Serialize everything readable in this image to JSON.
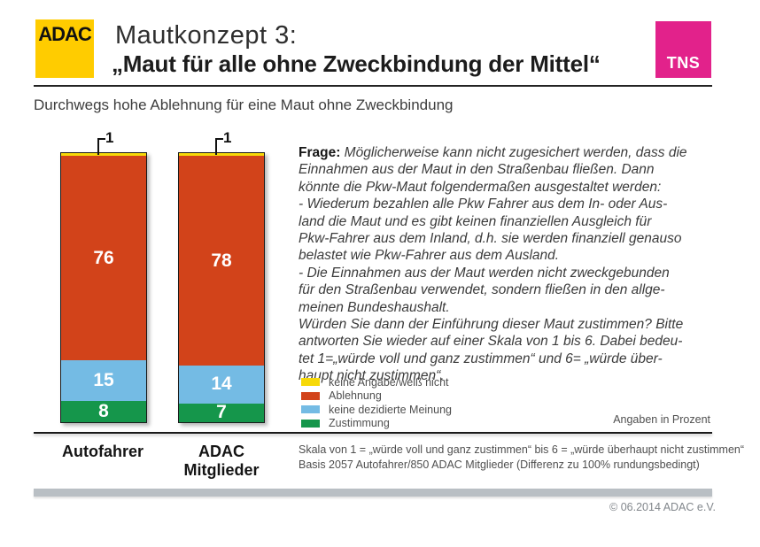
{
  "header": {
    "adac_logo_text": "ADAC",
    "title_line1": "Mautkonzept 3:",
    "title_line2": "„Maut für alle ohne Zweckbindung der Mittel“",
    "tns_logo_text": "TNS"
  },
  "subtitle": "Durchwegs hohe Ablehnung für eine Maut ohne Zweckbindung",
  "chart_data": {
    "type": "bar",
    "stacked": true,
    "unit": "percent",
    "categories": [
      "Autofahrer",
      "ADAC Mitglieder"
    ],
    "series": [
      {
        "name": "keine Angabe/weiß nicht",
        "color": "#f7d908",
        "values": [
          1,
          1
        ]
      },
      {
        "name": "Ablehnung",
        "color": "#d2431a",
        "values": [
          76,
          78
        ]
      },
      {
        "name": "keine dezidierte Meinung",
        "color": "#74bbe4",
        "values": [
          15,
          14
        ]
      },
      {
        "name": "Zustimmung",
        "color": "#15964b",
        "values": [
          8,
          7
        ]
      }
    ],
    "ylim": [
      0,
      100
    ],
    "grid": false,
    "legend_position": "right-middle",
    "bar_value_color": "#ffffff",
    "note": "Angaben in Prozent"
  },
  "question": {
    "label": "Frage:",
    "text": "Möglicherweise kann nicht zugesichert werden, dass die\nEinnahmen aus der Maut in den Straßenbau fließen. Dann\nkönnte die Pkw-Maut folgendermaßen ausgestaltet werden:\n- Wiederum bezahlen alle Pkw Fahrer aus dem In- oder Aus-\nland die Maut und es gibt keinen finanziellen Ausgleich für\nPkw-Fahrer aus dem Inland, d.h. sie werden finanziell genauso\nbelastet wie Pkw-Fahrer aus dem Ausland.\n- Die Einnahmen aus der Maut werden nicht zweckgebunden\nfür den Straßenbau verwendet, sondern fließen in den allge-\nmeinen Bundeshaushalt.\nWürden Sie dann der Einführung dieser Maut zustimmen? Bitte\nantworten Sie wieder auf einer Skala von 1 bis 6. Dabei bedeu-\ntet 1=„würde voll und ganz zustimmen“ und 6= „würde über-\nhaupt nicht zustimmen“."
  },
  "footnote": {
    "line1": "Skala von 1 = „würde voll und ganz zustimmen“ bis 6 = „würde überhaupt nicht zustimmen“",
    "line2": "Basis 2057 Autofahrer/850 ADAC Mitglieder (Differenz zu 100% rundungsbedingt)"
  },
  "footer": {
    "copyright": "© 06.2014  ADAC e.V."
  },
  "colors": {
    "adac_yellow": "#ffcc00",
    "tns_magenta": "#e2228b",
    "rule_dark": "#1a1a1a",
    "bottom_bar_gray": "#b9bfc4"
  }
}
